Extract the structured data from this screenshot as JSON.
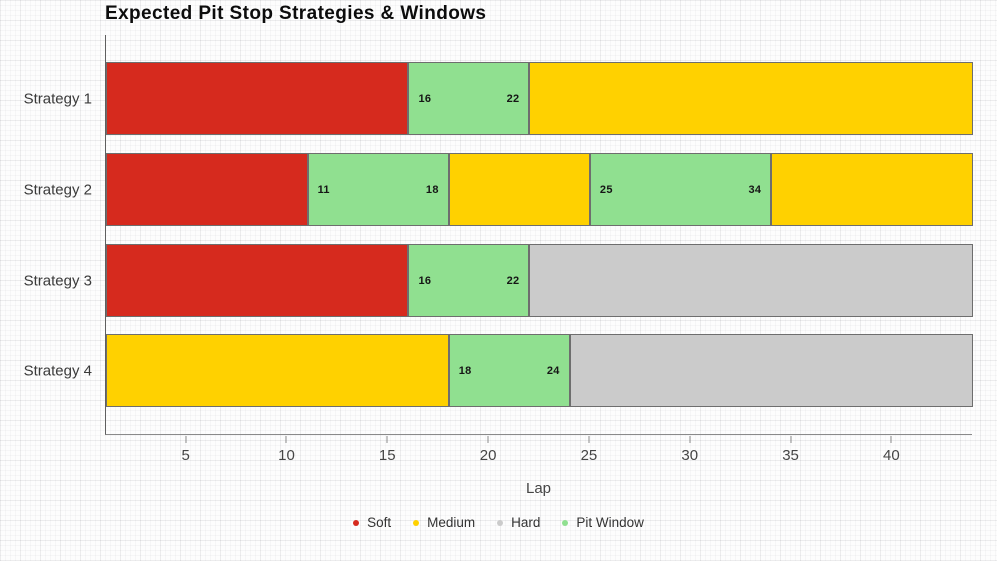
{
  "title": "Expected Pit Stop Strategies & Windows",
  "xlabel": "Lap",
  "colors": {
    "soft": "#d62a1e",
    "medium": "#ffd100",
    "hard": "#cbcbcb",
    "pit_window": "#90e090",
    "segment_border": "#6e6e6e",
    "axis": "#8a8a8a"
  },
  "legend": [
    {
      "key": "soft",
      "label": "Soft"
    },
    {
      "key": "medium",
      "label": "Medium"
    },
    {
      "key": "hard",
      "label": "Hard"
    },
    {
      "key": "pit_window",
      "label": "Pit Window"
    }
  ],
  "chart_data": {
    "type": "bar",
    "orientation": "horizontal-stacked",
    "title": "Expected Pit Stop Strategies & Windows",
    "xlabel": "Lap",
    "ylabel": "",
    "x_domain": [
      1,
      44
    ],
    "x_ticks": [
      5,
      10,
      15,
      20,
      25,
      30,
      35,
      40
    ],
    "grid": "graph-paper-background",
    "legend_position": "bottom-center",
    "categories": [
      "Strategy 1",
      "Strategy 2",
      "Strategy 3",
      "Strategy 4"
    ],
    "strategies": [
      {
        "name": "Strategy 1",
        "segments": [
          {
            "type": "soft",
            "start": 1,
            "end": 16
          },
          {
            "type": "pit_window",
            "start": 16,
            "end": 22,
            "label_start": "16",
            "label_end": "22"
          },
          {
            "type": "medium",
            "start": 22,
            "end": 44
          }
        ]
      },
      {
        "name": "Strategy 2",
        "segments": [
          {
            "type": "soft",
            "start": 1,
            "end": 11
          },
          {
            "type": "pit_window",
            "start": 11,
            "end": 18,
            "label_start": "11",
            "label_end": "18"
          },
          {
            "type": "medium",
            "start": 18,
            "end": 25
          },
          {
            "type": "pit_window",
            "start": 25,
            "end": 34,
            "label_start": "25",
            "label_end": "34"
          },
          {
            "type": "medium",
            "start": 34,
            "end": 44
          }
        ]
      },
      {
        "name": "Strategy 3",
        "segments": [
          {
            "type": "soft",
            "start": 1,
            "end": 16
          },
          {
            "type": "pit_window",
            "start": 16,
            "end": 22,
            "label_start": "16",
            "label_end": "22"
          },
          {
            "type": "hard",
            "start": 22,
            "end": 44
          }
        ]
      },
      {
        "name": "Strategy 4",
        "segments": [
          {
            "type": "medium",
            "start": 1,
            "end": 18
          },
          {
            "type": "pit_window",
            "start": 18,
            "end": 24,
            "label_start": "18",
            "label_end": "24"
          },
          {
            "type": "hard",
            "start": 24,
            "end": 44
          }
        ]
      }
    ]
  }
}
